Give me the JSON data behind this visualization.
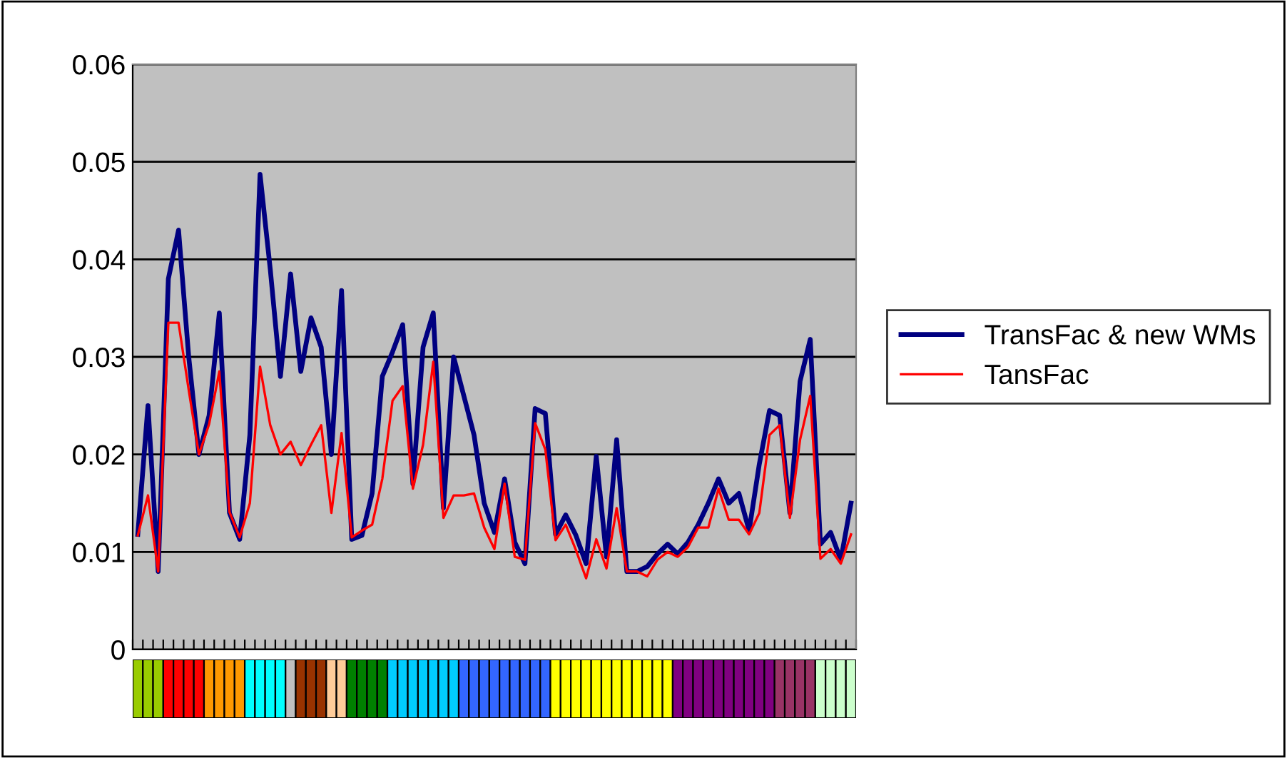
{
  "chart_data": [
    {
      "type": "line",
      "categories": [
        null,
        null,
        null,
        null,
        null,
        null,
        null,
        null,
        null,
        null,
        null,
        null,
        null,
        null,
        null,
        null,
        null,
        null,
        null,
        null,
        null,
        null,
        null,
        null,
        null,
        null,
        null,
        null,
        null,
        null,
        null,
        null,
        null,
        null,
        null,
        null,
        null,
        null,
        null,
        null,
        null,
        null,
        null,
        null,
        null,
        null,
        null,
        null,
        null,
        null,
        null,
        null,
        null,
        null,
        null,
        null,
        null,
        null,
        null,
        null,
        null,
        null,
        null,
        null,
        null,
        null,
        null,
        null,
        null,
        null,
        null
      ],
      "series": [
        {
          "name": "TransFac & new WMs",
          "color": "#000080",
          "values": [
            0.0118,
            0.025,
            0.008,
            0.038,
            0.043,
            0.03,
            0.02,
            0.024,
            0.0345,
            0.014,
            0.0113,
            0.022,
            0.0487,
            0.039,
            0.028,
            0.0385,
            0.0285,
            0.034,
            0.031,
            0.02,
            0.0368,
            0.0113,
            0.0117,
            0.016,
            0.028,
            0.0305,
            0.0333,
            0.017,
            0.031,
            0.0345,
            0.0145,
            0.03,
            0.026,
            0.022,
            0.015,
            0.012,
            0.0175,
            0.011,
            0.0088,
            0.0247,
            0.0242,
            0.0118,
            0.0138,
            0.0117,
            0.0088,
            0.0198,
            0.0095,
            0.0215,
            0.008,
            0.008,
            0.0085,
            0.0098,
            0.0108,
            0.0098,
            0.011,
            0.0128,
            0.015,
            0.0175,
            0.015,
            0.016,
            0.0122,
            0.019,
            0.0245,
            0.024,
            0.014,
            0.0275,
            0.0318,
            0.0108,
            0.012,
            0.0092,
            0.015
          ]
        },
        {
          "name": "TansFac",
          "color": "#ff0000",
          "values": [
            0.0117,
            0.0158,
            0.008,
            0.0335,
            0.0335,
            0.0266,
            0.02,
            0.0231,
            0.0285,
            0.0141,
            0.0115,
            0.015,
            0.029,
            0.023,
            0.02,
            0.0213,
            0.0189,
            0.021,
            0.023,
            0.014,
            0.0222,
            0.0115,
            0.0122,
            0.0128,
            0.0175,
            0.0255,
            0.027,
            0.0165,
            0.021,
            0.0295,
            0.0135,
            0.0158,
            0.0158,
            0.016,
            0.0125,
            0.0103,
            0.017,
            0.0095,
            0.0092,
            0.0232,
            0.0205,
            0.0112,
            0.0128,
            0.0102,
            0.0073,
            0.0113,
            0.0083,
            0.0145,
            0.008,
            0.008,
            0.0075,
            0.0092,
            0.01,
            0.0095,
            0.0105,
            0.0125,
            0.0125,
            0.0165,
            0.0133,
            0.0133,
            0.0118,
            0.014,
            0.022,
            0.023,
            0.0135,
            0.0215,
            0.026,
            0.0093,
            0.0103,
            0.0088,
            0.0118
          ]
        }
      ],
      "ylim": [
        0,
        0.06
      ],
      "yticks": [
        0,
        0.01,
        0.02,
        0.03,
        0.04,
        0.05,
        0.06
      ],
      "grid": "y",
      "legend": "right",
      "tick_labels": "y",
      "marker": "none",
      "line_style": "solid"
    },
    {
      "type": "other",
      "categories": [
        null,
        null,
        null,
        null,
        null,
        null,
        null,
        null,
        null,
        null,
        null,
        null,
        null,
        null,
        null,
        null,
        null,
        null,
        null,
        null,
        null,
        null,
        null,
        null,
        null,
        null,
        null,
        null,
        null,
        null,
        null,
        null,
        null,
        null,
        null,
        null,
        null,
        null,
        null,
        null,
        null,
        null,
        null,
        null,
        null,
        null,
        null,
        null,
        null,
        null,
        null,
        null,
        null,
        null,
        null,
        null,
        null,
        null,
        null,
        null,
        null,
        null,
        null,
        null,
        null,
        null,
        null,
        null,
        null,
        null,
        null
      ],
      "colors": [
        "#99cc00",
        "#99cc00",
        "#99cc00",
        "#ff0000",
        "#ff0000",
        "#ff0000",
        "#ff0000",
        "#ff9900",
        "#ff9900",
        "#ff9900",
        "#ff9900",
        "#00ffff",
        "#00ffff",
        "#00ffff",
        "#00ffff",
        "#c0c0c0",
        "#993300",
        "#993300",
        "#993300",
        "#ffcc99",
        "#ffcc99",
        "#008000",
        "#008000",
        "#008000",
        "#008000",
        "#00ccff",
        "#00ccff",
        "#00ccff",
        "#00ccff",
        "#00ccff",
        "#00ccff",
        "#00ccff",
        "#3366ff",
        "#3366ff",
        "#3366ff",
        "#3366ff",
        "#3366ff",
        "#3366ff",
        "#3366ff",
        "#3366ff",
        "#3366ff",
        "#ffff00",
        "#ffff00",
        "#ffff00",
        "#ffff00",
        "#ffff00",
        "#ffff00",
        "#ffff00",
        "#ffff00",
        "#ffff00",
        "#ffff00",
        "#ffff00",
        "#ffff00",
        "#800080",
        "#800080",
        "#800080",
        "#800080",
        "#800080",
        "#800080",
        "#800080",
        "#800080",
        "#800080",
        "#800080",
        "#993366",
        "#993366",
        "#993366",
        "#993366",
        "#ccffcc",
        "#ccffcc",
        "#ccffcc",
        "#ccffcc"
      ]
    }
  ]
}
